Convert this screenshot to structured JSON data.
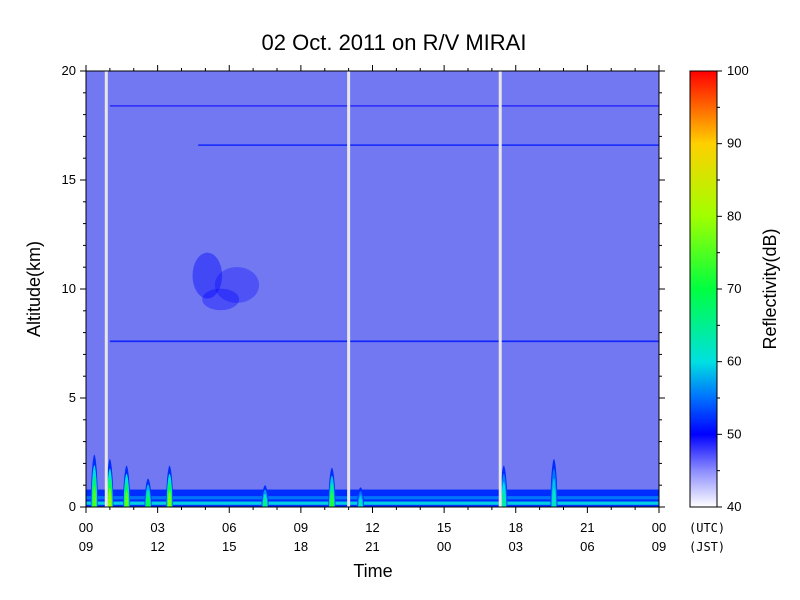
{
  "chart_data": {
    "type": "heatmap",
    "title": "02 Oct. 2011  on R/V MIRAI",
    "xlabel": "Time",
    "ylabel": "Altitude(km)",
    "colorbar_label": "Reflectivity(dB)",
    "x_units_label_utc": "(UTC)",
    "x_units_label_jst": "(JST)",
    "xlim_hours_utc": [
      0,
      24
    ],
    "ylim_km": [
      0,
      20
    ],
    "x_ticks_utc": [
      "00",
      "03",
      "06",
      "09",
      "12",
      "15",
      "18",
      "21",
      "00"
    ],
    "x_ticks_jst": [
      "09",
      "12",
      "15",
      "18",
      "21",
      "00",
      "03",
      "06",
      "09"
    ],
    "x_tick_hours": [
      0,
      3,
      6,
      9,
      12,
      15,
      18,
      21,
      24
    ],
    "y_ticks": [
      0,
      5,
      10,
      15,
      20
    ],
    "colorbar_range_db": [
      40,
      100
    ],
    "colorbar_ticks": [
      40,
      50,
      60,
      70,
      80,
      90,
      100
    ],
    "colormap_stops": [
      {
        "value": 40,
        "color": "#ffffff"
      },
      {
        "value": 45,
        "color": "#8c8cff"
      },
      {
        "value": 50,
        "color": "#0000ff"
      },
      {
        "value": 55,
        "color": "#0070ff"
      },
      {
        "value": 60,
        "color": "#00e0e0"
      },
      {
        "value": 70,
        "color": "#00ff40"
      },
      {
        "value": 80,
        "color": "#a0ff00"
      },
      {
        "value": 90,
        "color": "#ffd000"
      },
      {
        "value": 100,
        "color": "#ff0000"
      }
    ],
    "background_reflectivity_db": 45,
    "background_color": "#7178f2",
    "data_gaps_hours_utc": [
      0.85,
      11.0,
      17.35
    ],
    "horizontal_bands_km": [
      {
        "altitude": 18.4,
        "db": 49,
        "from_hour": 1.0,
        "to_hour": 24.0
      },
      {
        "altitude": 16.6,
        "db": 51,
        "from_hour": 4.7,
        "to_hour": 24.0
      },
      {
        "altitude": 7.6,
        "db": 51,
        "from_hour": 1.0,
        "to_hour": 24.0
      }
    ],
    "surface_layer_km": [
      0,
      0.8
    ],
    "surface_layer_db": 52,
    "echoes": [
      {
        "hour": 0.35,
        "alt_top_km": 2.4,
        "peak_db": 75
      },
      {
        "hour": 1.0,
        "alt_top_km": 2.2,
        "peak_db": 80
      },
      {
        "hour": 1.7,
        "alt_top_km": 1.9,
        "peak_db": 76
      },
      {
        "hour": 2.6,
        "alt_top_km": 1.3,
        "peak_db": 70
      },
      {
        "hour": 3.5,
        "alt_top_km": 1.9,
        "peak_db": 78
      },
      {
        "hour": 7.5,
        "alt_top_km": 1.0,
        "peak_db": 66
      },
      {
        "hour": 10.3,
        "alt_top_km": 1.8,
        "peak_db": 72
      },
      {
        "hour": 11.5,
        "alt_top_km": 0.9,
        "peak_db": 62
      },
      {
        "hour": 17.5,
        "alt_top_km": 1.9,
        "peak_db": 64
      },
      {
        "hour": 19.6,
        "alt_top_km": 2.2,
        "peak_db": 62
      }
    ],
    "upper_cloud_km": {
      "from_hour": 4.4,
      "to_hour": 7.5,
      "alt_bottom": 8.7,
      "alt_top": 12.0,
      "db": 50
    }
  }
}
